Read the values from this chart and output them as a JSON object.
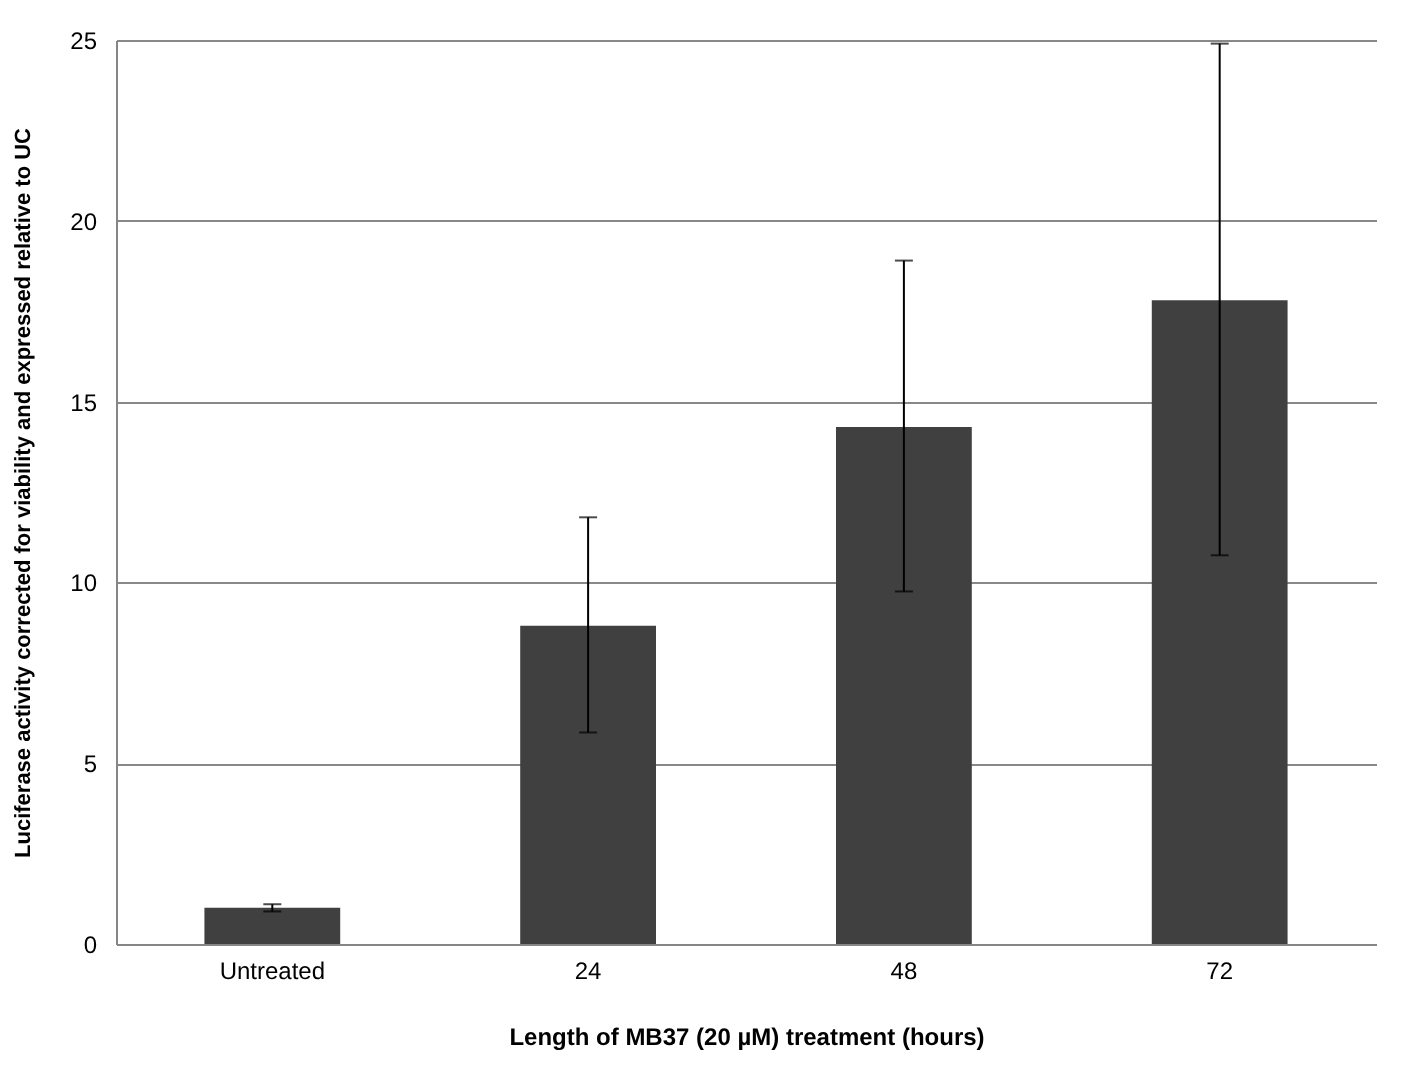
{
  "chart_data": {
    "type": "bar",
    "xlabel": "Length of MB37 (20 µM) treatment (hours)",
    "ylabel": "Luciferase activity corrected for viability and expressed relative to UC",
    "categories": [
      "Untreated",
      "24",
      "48",
      "72"
    ],
    "values": [
      1.0,
      8.8,
      14.3,
      17.8
    ],
    "errors": [
      0.1,
      [
        5.85,
        11.8
      ],
      [
        9.75,
        18.9
      ],
      [
        10.75,
        24.9
      ]
    ],
    "color": "#404040",
    "ylim": [
      0,
      25
    ],
    "yticks": [
      0,
      5,
      10,
      15,
      20,
      25
    ],
    "grid": "y"
  }
}
